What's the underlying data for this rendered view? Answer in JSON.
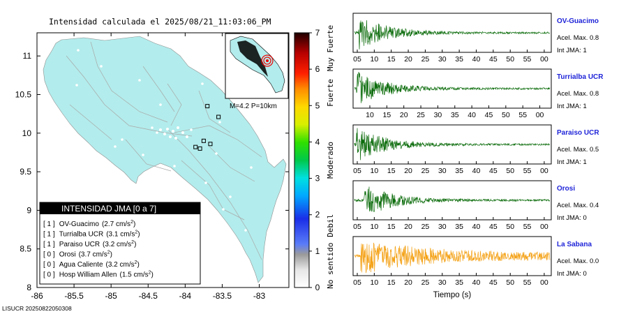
{
  "map": {
    "title": "Intensidad calculada el 2025/08/21_11:03:06_PM",
    "inset_label": "M=4.2 P=10km",
    "y_ticks": [
      "11",
      "10.5",
      "10",
      "9.5",
      "9",
      "8.5",
      "8"
    ],
    "x_ticks": [
      "-86",
      "-85.5",
      "-85",
      "-84.5",
      "-84",
      "-83.5",
      "-83"
    ],
    "footer": "LISUCR 20250822050308",
    "land_color": "#b3ecec"
  },
  "legend": {
    "title": "INTENSIDAD JMA [0 a 7]",
    "entries": [
      {
        "jma": "[ 1 ]",
        "name": "OV-Guacimo",
        "accel": "(2.7 cm/s",
        "unit_sup": "2",
        "close": ")"
      },
      {
        "jma": "[ 1 ]",
        "name": "Turrialba UCR",
        "accel": "(3.1 cm/s",
        "unit_sup": "2",
        "close": ")"
      },
      {
        "jma": "[ 1 ]",
        "name": "Paraiso UCR",
        "accel": "(3.2 cm/s",
        "unit_sup": "2",
        "close": ")"
      },
      {
        "jma": "[ 0 ]",
        "name": "Orosi",
        "accel": "(3.7 cm/s",
        "unit_sup": "2",
        "close": ")"
      },
      {
        "jma": "[ 0 ]",
        "name": "Agua Caliente",
        "accel": "(3.2 cm/s",
        "unit_sup": "2",
        "close": ")"
      },
      {
        "jma": "[ 0 ]",
        "name": "Hosp William Allen",
        "accel": "(1.5 cm/s",
        "unit_sup": "2",
        "close": ")"
      }
    ]
  },
  "colorbar": {
    "ticks": [
      "7",
      "6",
      "5",
      "4",
      "3",
      "2",
      "1",
      "0"
    ],
    "category_labels": [
      "Muy Fuerte",
      "Fuerte",
      "Moderado",
      "Debil",
      "No sentido"
    ]
  },
  "chart_data": [
    {
      "type": "map",
      "title": "Intensidad calculada el 2025/08/21_11:03:06_PM",
      "xlim": [
        -86,
        -82.6
      ],
      "ylim": [
        8,
        11.3
      ],
      "stations_marked": [
        {
          "lon": -83.7,
          "lat": 10.35
        },
        {
          "lon": -83.55,
          "lat": 10.21
        },
        {
          "lon": -83.75,
          "lat": 9.9
        },
        {
          "lon": -83.66,
          "lat": 9.86
        },
        {
          "lon": -83.8,
          "lat": 9.8
        },
        {
          "lon": -83.86,
          "lat": 9.82
        }
      ]
    },
    {
      "type": "colorbar",
      "ticks": [
        0,
        1,
        2,
        3,
        4,
        5,
        6,
        7
      ],
      "labels": [
        "No sentido",
        "Debil",
        "Moderado",
        "Fuerte",
        "Muy Fuerte"
      ]
    },
    {
      "type": "line",
      "xlabel": "Tiempo (s)",
      "traces": [
        {
          "name": "OV-Guacimo",
          "acel": "Acel. Max. 0.8",
          "jma": "Int JMA: 1",
          "color": "#0a6b0a",
          "onset": 0.02,
          "ticks": [
            "05",
            "10",
            "15",
            "20",
            "25",
            "30",
            "35",
            "40",
            "45",
            "50",
            "55",
            "00"
          ]
        },
        {
          "name": "Turrialba UCR",
          "acel": "Acel. Max. 0.8",
          "jma": "Int JMA: 1",
          "color": "#0a6b0a",
          "onset": 0.01,
          "ticks": [
            "10",
            "15",
            "20",
            "25",
            "30",
            "35",
            "40",
            "45",
            "50",
            "55",
            "00",
            "05"
          ]
        },
        {
          "name": "Paraiso UCR",
          "acel": "Acel. Max. 0.5",
          "jma": "Int JMA: 1",
          "color": "#0a6b0a",
          "onset": 0.01,
          "ticks": [
            "05",
            "10",
            "15",
            "20",
            "25",
            "30",
            "35",
            "40",
            "45",
            "50",
            "55",
            "00"
          ]
        },
        {
          "name": "Orosi",
          "acel": "Acel. Max. 0.4",
          "jma": "Int JMA: 0",
          "color": "#0a6b0a",
          "onset": 0.05,
          "ticks": [
            "05",
            "10",
            "15",
            "20",
            "25",
            "30",
            "35",
            "40",
            "45",
            "50",
            "55",
            "00"
          ]
        },
        {
          "name": "La Sabana",
          "acel": "Acel. Max. 0.0",
          "jma": "Int JMA: 0",
          "color": "#f4a012",
          "onset": 0.03,
          "ticks": [
            "05",
            "10",
            "15",
            "20",
            "25",
            "30",
            "35",
            "40",
            "45",
            "50",
            "55",
            "00"
          ]
        }
      ]
    }
  ]
}
